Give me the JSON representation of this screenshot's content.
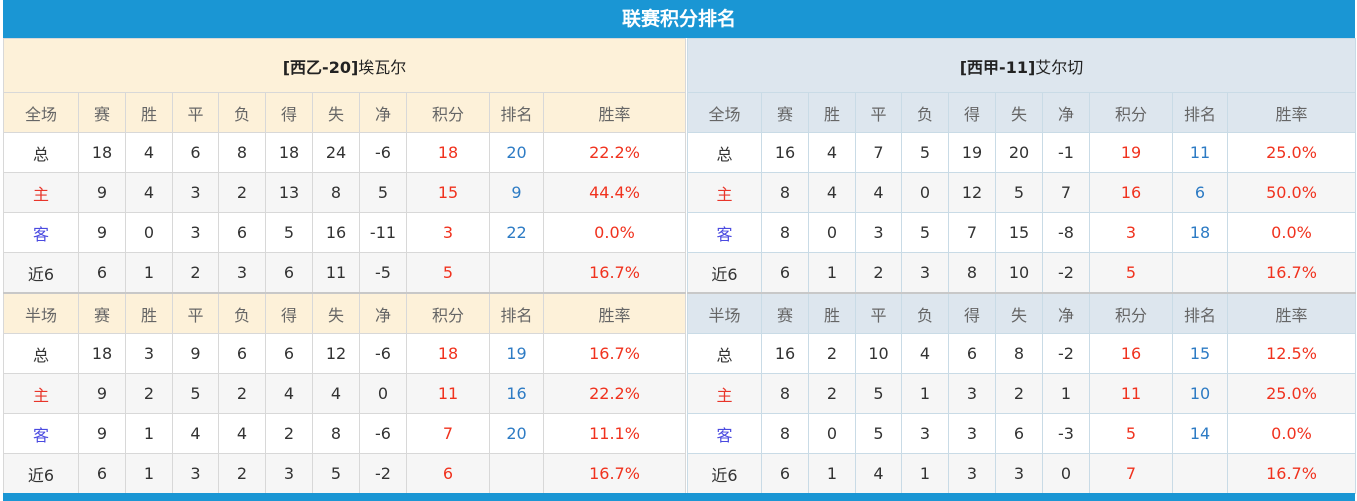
{
  "title": "联赛积分排名",
  "columns_full": [
    "全场",
    "赛",
    "胜",
    "平",
    "负",
    "得",
    "失",
    "净",
    "积分",
    "排名",
    "胜率"
  ],
  "columns_half": [
    "半场",
    "赛",
    "胜",
    "平",
    "负",
    "得",
    "失",
    "净",
    "积分",
    "排名",
    "胜率"
  ],
  "colors": {
    "header_bar": "#1a96d4",
    "home_header": "#fdf1d9",
    "away_header": "#dde6ee",
    "points": "#f0321e",
    "rank": "#2d7bc4"
  },
  "teams": [
    {
      "prefix": "[西乙-",
      "rank": "20",
      "suffix": "]",
      "name": "埃瓦尔",
      "full": [
        [
          "总",
          "18",
          "4",
          "6",
          "8",
          "18",
          "24",
          "-6",
          "18",
          "20",
          "22.2%"
        ],
        [
          "主",
          "9",
          "4",
          "3",
          "2",
          "13",
          "8",
          "5",
          "15",
          "9",
          "44.4%"
        ],
        [
          "客",
          "9",
          "0",
          "3",
          "6",
          "5",
          "16",
          "-11",
          "3",
          "22",
          "0.0%"
        ],
        [
          "近6",
          "6",
          "1",
          "2",
          "3",
          "6",
          "11",
          "-5",
          "5",
          "",
          "16.7%"
        ]
      ],
      "half": [
        [
          "总",
          "18",
          "3",
          "9",
          "6",
          "6",
          "12",
          "-6",
          "18",
          "19",
          "16.7%"
        ],
        [
          "主",
          "9",
          "2",
          "5",
          "2",
          "4",
          "4",
          "0",
          "11",
          "16",
          "22.2%"
        ],
        [
          "客",
          "9",
          "1",
          "4",
          "4",
          "2",
          "8",
          "-6",
          "7",
          "20",
          "11.1%"
        ],
        [
          "近6",
          "6",
          "1",
          "3",
          "2",
          "3",
          "5",
          "-2",
          "6",
          "",
          "16.7%"
        ]
      ]
    },
    {
      "prefix": "[西甲-",
      "rank": "11",
      "suffix": "]",
      "name": "艾尔切",
      "full": [
        [
          "总",
          "16",
          "4",
          "7",
          "5",
          "19",
          "20",
          "-1",
          "19",
          "11",
          "25.0%"
        ],
        [
          "主",
          "8",
          "4",
          "4",
          "0",
          "12",
          "5",
          "7",
          "16",
          "6",
          "50.0%"
        ],
        [
          "客",
          "8",
          "0",
          "3",
          "5",
          "7",
          "15",
          "-8",
          "3",
          "18",
          "0.0%"
        ],
        [
          "近6",
          "6",
          "1",
          "2",
          "3",
          "8",
          "10",
          "-2",
          "5",
          "",
          "16.7%"
        ]
      ],
      "half": [
        [
          "总",
          "16",
          "2",
          "10",
          "4",
          "6",
          "8",
          "-2",
          "16",
          "15",
          "12.5%"
        ],
        [
          "主",
          "8",
          "2",
          "5",
          "1",
          "3",
          "2",
          "1",
          "11",
          "10",
          "25.0%"
        ],
        [
          "客",
          "8",
          "0",
          "5",
          "3",
          "3",
          "6",
          "-3",
          "5",
          "14",
          "0.0%"
        ],
        [
          "近6",
          "6",
          "1",
          "4",
          "1",
          "3",
          "3",
          "0",
          "7",
          "",
          "16.7%"
        ]
      ]
    }
  ]
}
